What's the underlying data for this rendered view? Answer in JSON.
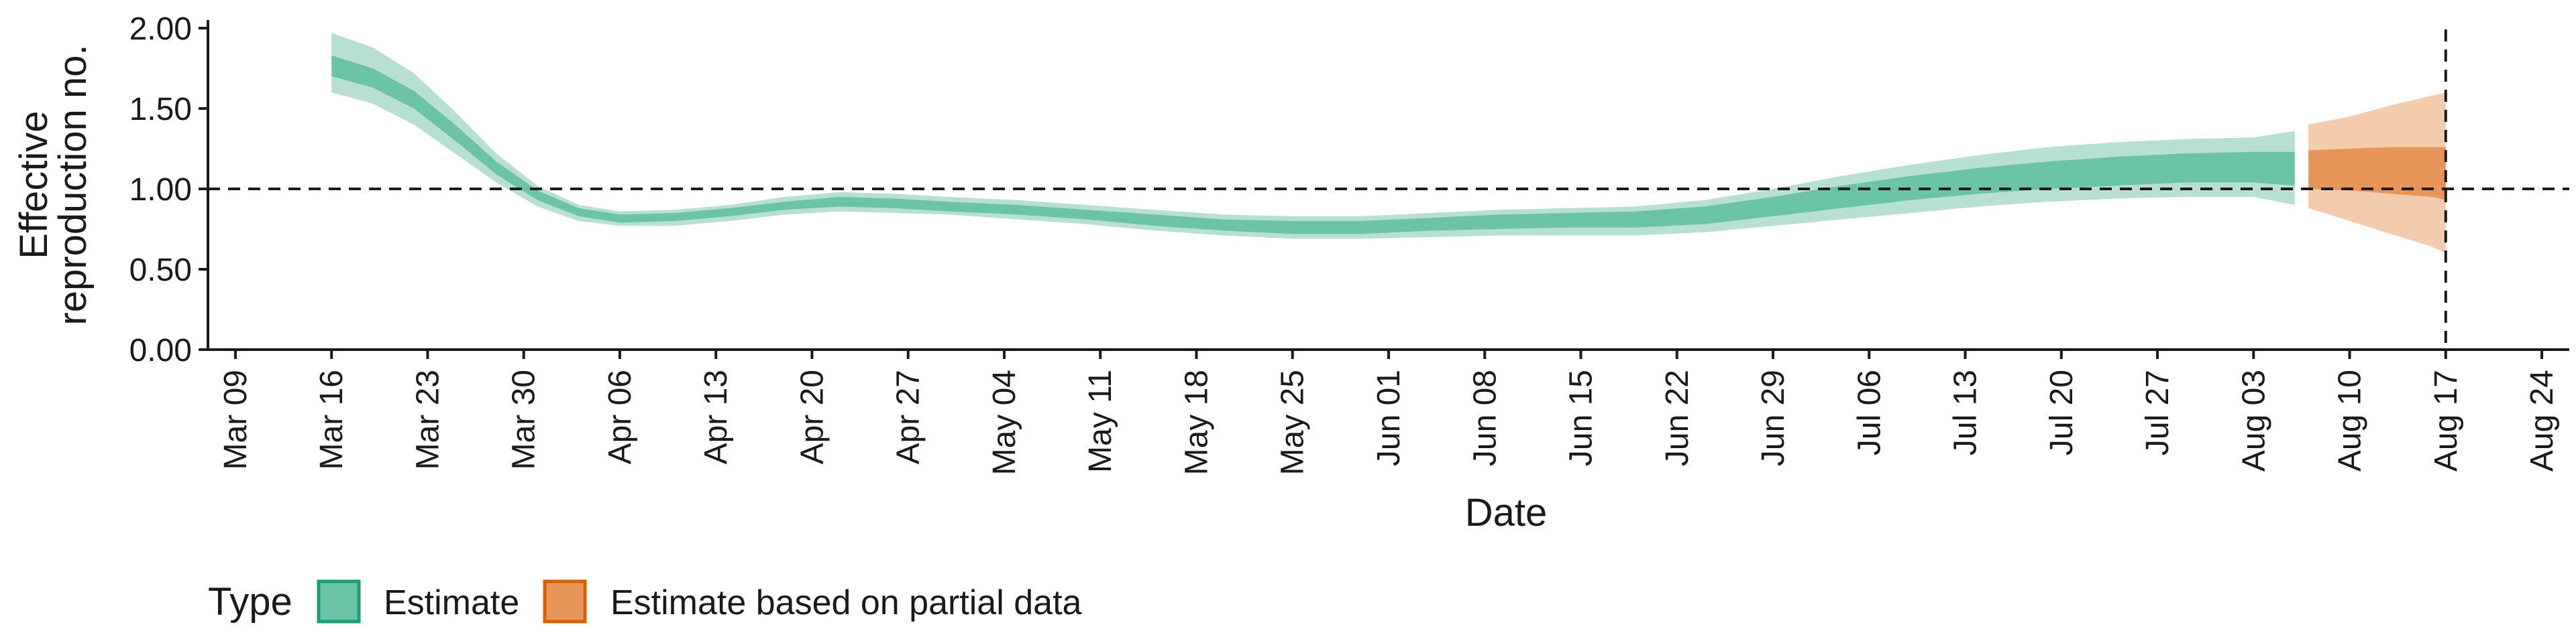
{
  "chart_data": {
    "type": "area",
    "xlabel": "Date",
    "ylabel_lines": [
      "Effective",
      "reproduction no."
    ],
    "ylim": [
      0,
      2.05
    ],
    "xlim": [
      "2020-03-07",
      "2020-08-26"
    ],
    "y_ticks": [
      {
        "value": 0.0,
        "label": "0.00"
      },
      {
        "value": 0.5,
        "label": "0.50"
      },
      {
        "value": 1.0,
        "label": "1.00"
      },
      {
        "value": 1.5,
        "label": "1.50"
      },
      {
        "value": 2.0,
        "label": "2.00"
      }
    ],
    "x_ticks": [
      {
        "date": "2020-03-09",
        "label": "Mar 09"
      },
      {
        "date": "2020-03-16",
        "label": "Mar 16"
      },
      {
        "date": "2020-03-23",
        "label": "Mar 23"
      },
      {
        "date": "2020-03-30",
        "label": "Mar 30"
      },
      {
        "date": "2020-04-06",
        "label": "Apr 06"
      },
      {
        "date": "2020-04-13",
        "label": "Apr 13"
      },
      {
        "date": "2020-04-20",
        "label": "Apr 20"
      },
      {
        "date": "2020-04-27",
        "label": "Apr 27"
      },
      {
        "date": "2020-05-04",
        "label": "May 04"
      },
      {
        "date": "2020-05-11",
        "label": "May 11"
      },
      {
        "date": "2020-05-18",
        "label": "May 18"
      },
      {
        "date": "2020-05-25",
        "label": "May 25"
      },
      {
        "date": "2020-06-01",
        "label": "Jun 01"
      },
      {
        "date": "2020-06-08",
        "label": "Jun 08"
      },
      {
        "date": "2020-06-15",
        "label": "Jun 15"
      },
      {
        "date": "2020-06-22",
        "label": "Jun 22"
      },
      {
        "date": "2020-06-29",
        "label": "Jun 29"
      },
      {
        "date": "2020-07-06",
        "label": "Jul 06"
      },
      {
        "date": "2020-07-13",
        "label": "Jul 13"
      },
      {
        "date": "2020-07-20",
        "label": "Jul 20"
      },
      {
        "date": "2020-07-27",
        "label": "Jul 27"
      },
      {
        "date": "2020-08-03",
        "label": "Aug 03"
      },
      {
        "date": "2020-08-10",
        "label": "Aug 10"
      },
      {
        "date": "2020-08-17",
        "label": "Aug 17"
      },
      {
        "date": "2020-08-24",
        "label": "Aug 24"
      }
    ],
    "reference_lines": {
      "horizontal_y": 1.0,
      "vertical_date": "2020-08-17",
      "style": "dashed"
    },
    "series": [
      {
        "name": "Estimate",
        "color": "#1b9e77",
        "outer_color": "#b8e0d2",
        "inner_color": "#6cc4a6",
        "points": [
          {
            "date": "2020-03-16",
            "outer": [
              1.6,
              1.97
            ],
            "inner": [
              1.7,
              1.83
            ]
          },
          {
            "date": "2020-03-19",
            "outer": [
              1.53,
              1.88
            ],
            "inner": [
              1.63,
              1.75
            ]
          },
          {
            "date": "2020-03-22",
            "outer": [
              1.4,
              1.72
            ],
            "inner": [
              1.5,
              1.61
            ]
          },
          {
            "date": "2020-03-25",
            "outer": [
              1.22,
              1.48
            ],
            "inner": [
              1.3,
              1.4
            ]
          },
          {
            "date": "2020-03-28",
            "outer": [
              1.04,
              1.22
            ],
            "inner": [
              1.09,
              1.17
            ]
          },
          {
            "date": "2020-03-31",
            "outer": [
              0.89,
              1.02
            ],
            "inner": [
              0.93,
              0.99
            ]
          },
          {
            "date": "2020-04-03",
            "outer": [
              0.8,
              0.9
            ],
            "inner": [
              0.83,
              0.88
            ]
          },
          {
            "date": "2020-04-06",
            "outer": [
              0.77,
              0.86
            ],
            "inner": [
              0.79,
              0.84
            ]
          },
          {
            "date": "2020-04-10",
            "outer": [
              0.77,
              0.87
            ],
            "inner": [
              0.8,
              0.85
            ]
          },
          {
            "date": "2020-04-14",
            "outer": [
              0.8,
              0.9
            ],
            "inner": [
              0.83,
              0.88
            ]
          },
          {
            "date": "2020-04-18",
            "outer": [
              0.84,
              0.95
            ],
            "inner": [
              0.87,
              0.92
            ]
          },
          {
            "date": "2020-04-22",
            "outer": [
              0.86,
              0.98
            ],
            "inner": [
              0.89,
              0.95
            ]
          },
          {
            "date": "2020-04-26",
            "outer": [
              0.85,
              0.97
            ],
            "inner": [
              0.88,
              0.94
            ]
          },
          {
            "date": "2020-04-30",
            "outer": [
              0.84,
              0.95
            ],
            "inner": [
              0.86,
              0.92
            ]
          },
          {
            "date": "2020-05-05",
            "outer": [
              0.81,
              0.93
            ],
            "inner": [
              0.84,
              0.9
            ]
          },
          {
            "date": "2020-05-10",
            "outer": [
              0.78,
              0.9
            ],
            "inner": [
              0.81,
              0.87
            ]
          },
          {
            "date": "2020-05-15",
            "outer": [
              0.74,
              0.87
            ],
            "inner": [
              0.77,
              0.84
            ]
          },
          {
            "date": "2020-05-20",
            "outer": [
              0.71,
              0.84
            ],
            "inner": [
              0.74,
              0.81
            ]
          },
          {
            "date": "2020-05-25",
            "outer": [
              0.69,
              0.83
            ],
            "inner": [
              0.72,
              0.8
            ]
          },
          {
            "date": "2020-05-30",
            "outer": [
              0.69,
              0.83
            ],
            "inner": [
              0.72,
              0.8
            ]
          },
          {
            "date": "2020-06-04",
            "outer": [
              0.7,
              0.85
            ],
            "inner": [
              0.74,
              0.82
            ]
          },
          {
            "date": "2020-06-09",
            "outer": [
              0.71,
              0.87
            ],
            "inner": [
              0.75,
              0.84
            ]
          },
          {
            "date": "2020-06-14",
            "outer": [
              0.71,
              0.88
            ],
            "inner": [
              0.76,
              0.85
            ]
          },
          {
            "date": "2020-06-19",
            "outer": [
              0.71,
              0.89
            ],
            "inner": [
              0.76,
              0.86
            ]
          },
          {
            "date": "2020-06-24",
            "outer": [
              0.73,
              0.93
            ],
            "inner": [
              0.78,
              0.89
            ]
          },
          {
            "date": "2020-06-29",
            "outer": [
              0.77,
              1.0
            ],
            "inner": [
              0.83,
              0.95
            ]
          },
          {
            "date": "2020-07-04",
            "outer": [
              0.81,
              1.08
            ],
            "inner": [
              0.88,
              1.02
            ]
          },
          {
            "date": "2020-07-09",
            "outer": [
              0.85,
              1.15
            ],
            "inner": [
              0.93,
              1.08
            ]
          },
          {
            "date": "2020-07-14",
            "outer": [
              0.89,
              1.21
            ],
            "inner": [
              0.97,
              1.13
            ]
          },
          {
            "date": "2020-07-19",
            "outer": [
              0.92,
              1.26
            ],
            "inner": [
              1.0,
              1.17
            ]
          },
          {
            "date": "2020-07-24",
            "outer": [
              0.94,
              1.29
            ],
            "inner": [
              1.02,
              1.2
            ]
          },
          {
            "date": "2020-07-29",
            "outer": [
              0.95,
              1.31
            ],
            "inner": [
              1.04,
              1.22
            ]
          },
          {
            "date": "2020-08-03",
            "outer": [
              0.95,
              1.32
            ],
            "inner": [
              1.04,
              1.23
            ]
          },
          {
            "date": "2020-08-06",
            "outer": [
              0.9,
              1.36
            ],
            "inner": [
              1.02,
              1.23
            ]
          }
        ]
      },
      {
        "name": "Estimate based on partial data",
        "color": "#d95f02",
        "outer_color": "#f3cbad",
        "inner_color": "#e8955a",
        "points": [
          {
            "date": "2020-08-07",
            "outer": [
              0.88,
              1.4
            ],
            "inner": [
              1.0,
              1.24
            ]
          },
          {
            "date": "2020-08-10",
            "outer": [
              0.8,
              1.45
            ],
            "inner": [
              0.99,
              1.25
            ]
          },
          {
            "date": "2020-08-13",
            "outer": [
              0.72,
              1.52
            ],
            "inner": [
              0.97,
              1.26
            ]
          },
          {
            "date": "2020-08-16",
            "outer": [
              0.64,
              1.58
            ],
            "inner": [
              0.95,
              1.26
            ]
          },
          {
            "date": "2020-08-17",
            "outer": [
              0.6,
              1.6
            ],
            "inner": [
              0.93,
              1.26
            ]
          }
        ]
      }
    ],
    "legend": {
      "title": "Type",
      "position": "bottom-left",
      "items": [
        "Estimate",
        "Estimate based on partial data"
      ]
    }
  }
}
